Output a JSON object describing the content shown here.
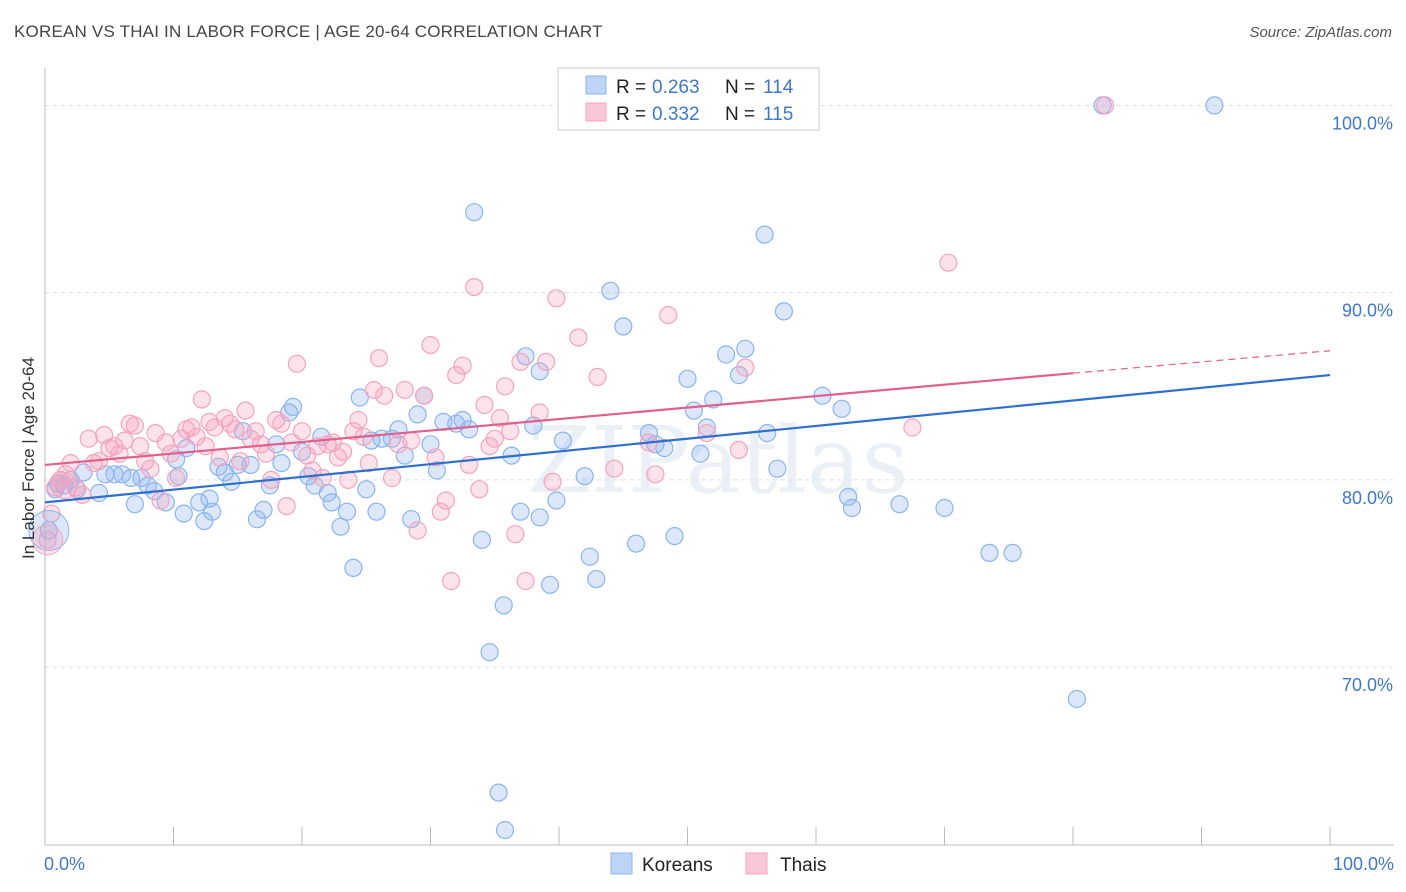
{
  "title": "KOREAN VS THAI IN LABOR FORCE | AGE 20-64 CORRELATION CHART",
  "source": "Source: ZipAtlas.com",
  "watermark": "ZIPatlas",
  "chart_data": {
    "type": "scatter",
    "title": "KOREAN VS THAI IN LABOR FORCE | AGE 20-64 CORRELATION CHART",
    "xlabel": "",
    "ylabel": "In Labor Force | Age 20-64",
    "xlim": [
      0,
      100
    ],
    "ylim": [
      60.5,
      102
    ],
    "x_tick_labels": [
      "0.0%",
      "100.0%"
    ],
    "y_ticks": [
      {
        "value": 100,
        "label": "100.0%"
      },
      {
        "value": 90,
        "label": "90.0%"
      },
      {
        "value": 80,
        "label": "80.0%"
      },
      {
        "value": 70,
        "label": "70.0%"
      }
    ],
    "grid": true,
    "legend_position": "top-center",
    "series": [
      {
        "name": "Koreans",
        "color": "#8ab4f0",
        "trend_color": "#2f6fce",
        "R": "0.263",
        "N": "114",
        "trend": {
          "x": [
            0,
            100
          ],
          "y": [
            78.8,
            85.6
          ]
        },
        "points": [
          [
            0.3,
            77.3
          ],
          [
            0.8,
            79.5
          ],
          [
            1,
            79.8
          ],
          [
            1.5,
            79.7
          ],
          [
            2,
            80
          ],
          [
            2.5,
            79.5
          ],
          [
            3,
            80.4
          ],
          [
            4.2,
            79.3
          ],
          [
            4.7,
            80.3
          ],
          [
            5.4,
            80.3
          ],
          [
            6,
            80.3
          ],
          [
            6.7,
            80.1
          ],
          [
            7,
            78.7
          ],
          [
            7.5,
            80.1
          ],
          [
            8,
            79.7
          ],
          [
            8.5,
            79.4
          ],
          [
            9.4,
            78.8
          ],
          [
            10.2,
            81.1
          ],
          [
            10.4,
            80.2
          ],
          [
            10.8,
            78.2
          ],
          [
            11,
            81.7
          ],
          [
            12,
            78.8
          ],
          [
            12.4,
            77.8
          ],
          [
            12.8,
            79
          ],
          [
            13,
            78.3
          ],
          [
            13.5,
            80.7
          ],
          [
            14,
            80.4
          ],
          [
            14.5,
            79.9
          ],
          [
            15,
            80.8
          ],
          [
            15.4,
            82.6
          ],
          [
            16,
            80.8
          ],
          [
            16.5,
            77.9
          ],
          [
            17,
            78.4
          ],
          [
            17.5,
            79.7
          ],
          [
            18,
            81.9
          ],
          [
            18.4,
            80.9
          ],
          [
            19,
            83.6
          ],
          [
            19.3,
            83.9
          ],
          [
            20,
            81.5
          ],
          [
            20.5,
            80.2
          ],
          [
            21,
            79.7
          ],
          [
            21.5,
            82.3
          ],
          [
            22,
            79.3
          ],
          [
            22.3,
            78.8
          ],
          [
            23,
            77.5
          ],
          [
            23.5,
            78.3
          ],
          [
            24,
            75.3
          ],
          [
            24.5,
            84.4
          ],
          [
            25,
            79.5
          ],
          [
            25.4,
            82.1
          ],
          [
            25.8,
            78.3
          ],
          [
            26.2,
            82.2
          ],
          [
            27,
            82.2
          ],
          [
            27.5,
            82.7
          ],
          [
            28,
            81.3
          ],
          [
            28.5,
            77.9
          ],
          [
            29,
            83.5
          ],
          [
            29.5,
            84.5
          ],
          [
            30,
            81.9
          ],
          [
            30.5,
            80.5
          ],
          [
            31,
            83.1
          ],
          [
            32,
            83
          ],
          [
            32.5,
            83.2
          ],
          [
            33,
            82.7
          ],
          [
            33.4,
            94.3
          ],
          [
            34,
            76.8
          ],
          [
            34.6,
            70.8
          ],
          [
            35.3,
            63.3
          ],
          [
            35.8,
            61.3
          ],
          [
            35.7,
            73.3
          ],
          [
            36.3,
            81.3
          ],
          [
            37,
            78.3
          ],
          [
            37.4,
            86.6
          ],
          [
            38,
            82.9
          ],
          [
            38.5,
            85.8
          ],
          [
            38.5,
            78
          ],
          [
            39.3,
            74.4
          ],
          [
            39.8,
            78.9
          ],
          [
            40.3,
            82.1
          ],
          [
            42,
            80.2
          ],
          [
            42.4,
            75.9
          ],
          [
            42.9,
            74.7
          ],
          [
            44,
            90.1
          ],
          [
            45,
            88.2
          ],
          [
            46,
            76.6
          ],
          [
            47,
            82.5
          ],
          [
            47.5,
            81.9
          ],
          [
            48.2,
            81.7
          ],
          [
            49,
            77
          ],
          [
            50,
            85.4
          ],
          [
            50.5,
            83.7
          ],
          [
            51,
            81.4
          ],
          [
            51.5,
            82.8
          ],
          [
            52,
            84.3
          ],
          [
            53,
            86.7
          ],
          [
            54,
            85.6
          ],
          [
            54.5,
            87
          ],
          [
            56,
            93.1
          ],
          [
            56.2,
            82.5
          ],
          [
            57,
            80.6
          ],
          [
            57.5,
            89
          ],
          [
            60.5,
            84.5
          ],
          [
            62,
            83.8
          ],
          [
            62.5,
            79.1
          ],
          [
            62.8,
            78.5
          ],
          [
            66.5,
            78.7
          ],
          [
            70,
            78.5
          ],
          [
            73.5,
            76.1
          ],
          [
            75.3,
            76.1
          ],
          [
            80.3,
            68.3
          ],
          [
            82.3,
            100
          ],
          [
            91,
            100
          ]
        ]
      },
      {
        "name": "Thais",
        "color": "#f5a3bd",
        "trend_color": "#e0608e",
        "R": "0.332",
        "N": "115",
        "trend": {
          "x": [
            0,
            80
          ],
          "y": [
            80.8,
            85.7
          ]
        },
        "trend_dashed_extension": {
          "x": [
            80,
            100
          ],
          "y": [
            85.7,
            86.9
          ]
        },
        "points": [
          [
            0.2,
            76.8
          ],
          [
            0.5,
            78.2
          ],
          [
            0.8,
            79.6
          ],
          [
            1.2,
            80
          ],
          [
            1.6,
            80.3
          ],
          [
            2,
            80.9
          ],
          [
            2.4,
            79.6
          ],
          [
            2.9,
            79.2
          ],
          [
            3.4,
            82.2
          ],
          [
            3.8,
            80.9
          ],
          [
            4.2,
            81
          ],
          [
            4.6,
            82.4
          ],
          [
            5,
            81.7
          ],
          [
            5.4,
            81.8
          ],
          [
            5.8,
            81.4
          ],
          [
            6.2,
            82.1
          ],
          [
            6.6,
            83
          ],
          [
            7,
            82.9
          ],
          [
            7.4,
            81.8
          ],
          [
            7.8,
            81
          ],
          [
            8.2,
            80.6
          ],
          [
            8.6,
            82.5
          ],
          [
            9,
            78.9
          ],
          [
            9.4,
            82
          ],
          [
            9.8,
            81.4
          ],
          [
            10.2,
            80.1
          ],
          [
            10.6,
            82.2
          ],
          [
            11,
            82.7
          ],
          [
            11.4,
            82.8
          ],
          [
            11.8,
            82.3
          ],
          [
            12.2,
            84.3
          ],
          [
            12.5,
            81.8
          ],
          [
            12.8,
            83.1
          ],
          [
            13.2,
            82.8
          ],
          [
            13.6,
            81.2
          ],
          [
            14,
            83.3
          ],
          [
            14.4,
            83
          ],
          [
            14.8,
            82.7
          ],
          [
            15.2,
            81
          ],
          [
            15.6,
            83.7
          ],
          [
            16,
            82.2
          ],
          [
            16.4,
            82.6
          ],
          [
            16.8,
            81.9
          ],
          [
            17.2,
            81.4
          ],
          [
            17.6,
            80
          ],
          [
            18,
            83.2
          ],
          [
            18.4,
            83
          ],
          [
            18.8,
            78.6
          ],
          [
            19.2,
            82
          ],
          [
            19.6,
            86.2
          ],
          [
            20,
            82.6
          ],
          [
            20.4,
            81.3
          ],
          [
            20.8,
            80.5
          ],
          [
            21.2,
            81.8
          ],
          [
            21.6,
            80.1
          ],
          [
            22,
            81.9
          ],
          [
            22.4,
            82
          ],
          [
            22.8,
            81.2
          ],
          [
            23.2,
            81.5
          ],
          [
            23.6,
            80
          ],
          [
            24,
            82.6
          ],
          [
            24.4,
            83.2
          ],
          [
            24.8,
            82.3
          ],
          [
            25.2,
            80.9
          ],
          [
            25.6,
            84.8
          ],
          [
            26,
            86.5
          ],
          [
            26.4,
            84.5
          ],
          [
            27,
            80.1
          ],
          [
            27.5,
            81.9
          ],
          [
            28,
            84.8
          ],
          [
            28.5,
            82.1
          ],
          [
            29,
            77.3
          ],
          [
            29.5,
            84.5
          ],
          [
            30,
            87.2
          ],
          [
            30.4,
            81.2
          ],
          [
            30.8,
            78.3
          ],
          [
            31.2,
            78.9
          ],
          [
            31.6,
            74.6
          ],
          [
            32,
            85.6
          ],
          [
            32.5,
            86.1
          ],
          [
            33,
            80.8
          ],
          [
            33.4,
            90.3
          ],
          [
            33.8,
            79.5
          ],
          [
            34.2,
            84
          ],
          [
            34.6,
            81.8
          ],
          [
            35,
            82.2
          ],
          [
            35.4,
            83.3
          ],
          [
            35.8,
            85
          ],
          [
            36.2,
            82.6
          ],
          [
            36.6,
            77.1
          ],
          [
            37,
            86.3
          ],
          [
            37.4,
            74.6
          ],
          [
            38.5,
            83.6
          ],
          [
            39,
            86.3
          ],
          [
            39.5,
            79.9
          ],
          [
            39.8,
            89.7
          ],
          [
            41.5,
            87.6
          ],
          [
            43,
            85.5
          ],
          [
            44.3,
            80.6
          ],
          [
            47,
            82
          ],
          [
            47.5,
            80.3
          ],
          [
            48.5,
            88.8
          ],
          [
            51.5,
            82.5
          ],
          [
            54,
            81.6
          ],
          [
            54.5,
            86
          ],
          [
            67.5,
            82.8
          ],
          [
            70.3,
            91.6
          ],
          [
            82.5,
            100
          ]
        ]
      }
    ]
  },
  "legend": {
    "r_label": "R =",
    "n_label": "N =",
    "rows": [
      {
        "r": "0.263",
        "n": "114"
      },
      {
        "r": "0.332",
        "n": "115"
      }
    ]
  },
  "bottom_legend": [
    "Koreans",
    "Thais"
  ]
}
